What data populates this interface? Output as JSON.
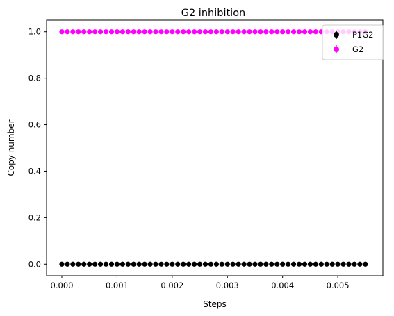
{
  "chart_data": {
    "type": "scatter",
    "title": "G2 inhibition",
    "xlabel": "Steps",
    "ylabel": "Copy number",
    "xlim": [
      -0.000277,
      0.005817
    ],
    "ylim": [
      -0.05,
      1.05
    ],
    "xticks": [
      0.0,
      0.001,
      0.002,
      0.003,
      0.004,
      0.005
    ],
    "xtick_labels": [
      "0.000",
      "0.001",
      "0.002",
      "0.003",
      "0.004",
      "0.005"
    ],
    "yticks": [
      0.0,
      0.2,
      0.4,
      0.6,
      0.8,
      1.0
    ],
    "ytick_labels": [
      "0.0",
      "0.2",
      "0.4",
      "0.6",
      "0.8",
      "1.0"
    ],
    "grid": false,
    "legend_position": "top-right",
    "x_start": 0.0,
    "x_step": 0.0001,
    "n_points": 56,
    "series": [
      {
        "name": "P1G2",
        "color": "#000000",
        "y_constant": 0.0
      },
      {
        "name": "G2",
        "color": "#ff00ff",
        "y_constant": 1.0
      }
    ]
  }
}
